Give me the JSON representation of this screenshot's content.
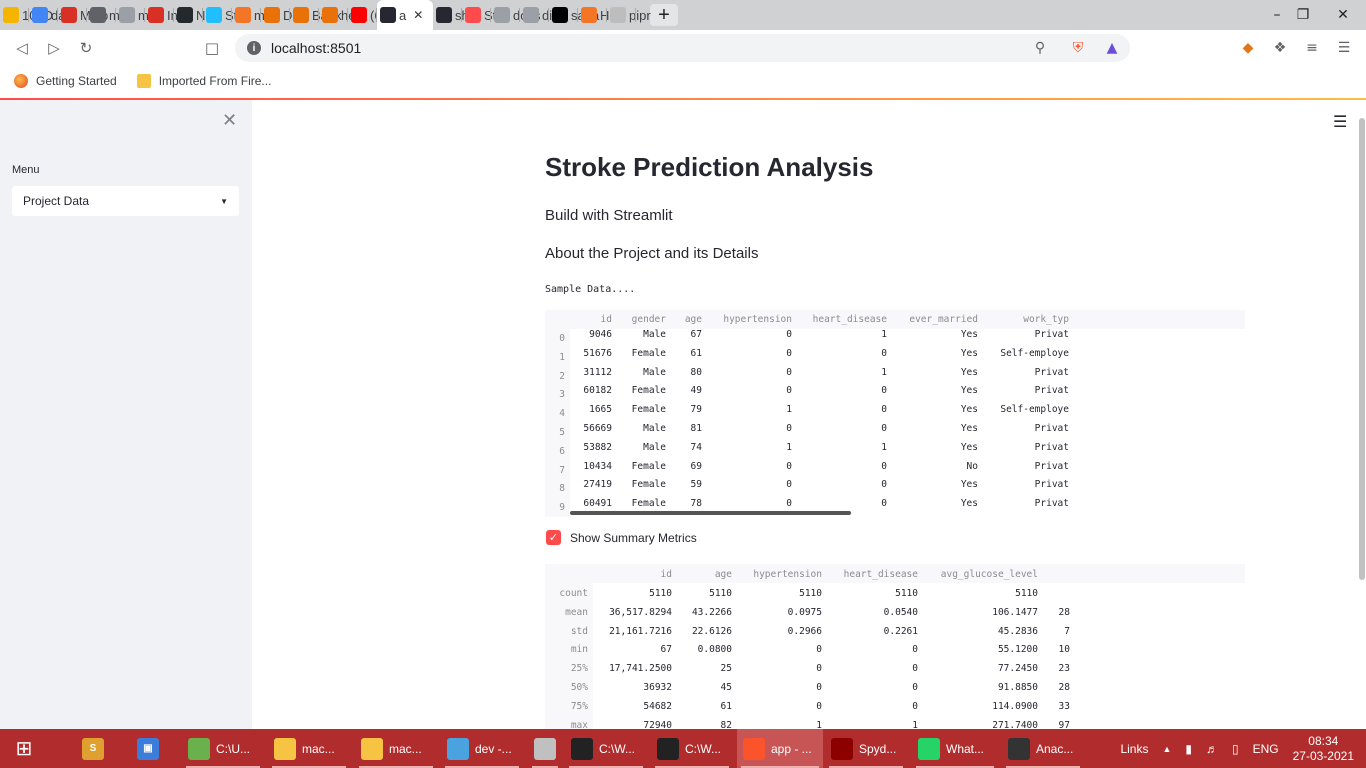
{
  "browser": {
    "tabs": [
      {
        "title": "10: D",
        "icon": "app-icon",
        "color": "#f4b400"
      },
      {
        "title": "data",
        "icon": "google-icon",
        "color": "#4285f4"
      },
      {
        "title": "My p",
        "icon": "gmail-icon",
        "color": "#d93025"
      },
      {
        "title": "mail",
        "icon": "globe-icon",
        "color": "#5f6368"
      },
      {
        "title": "mail",
        "icon": "gmail-icon",
        "color": "#9aa0a6"
      },
      {
        "title": "Inbo",
        "icon": "gmail-icon",
        "color": "#d93025"
      },
      {
        "title": "New",
        "icon": "github-icon",
        "color": "#24292e"
      },
      {
        "title": "Stro",
        "icon": "kaggle-icon",
        "color": "#20beff"
      },
      {
        "title": "mac",
        "icon": "orange-ring-icon",
        "color": "#f37626"
      },
      {
        "title": "Desi",
        "icon": "doc-icon",
        "color": "#e8710a"
      },
      {
        "title": "Bank",
        "icon": "doc-icon",
        "color": "#e8710a"
      },
      {
        "title": "heal",
        "icon": "doc-icon",
        "color": "#e8710a"
      },
      {
        "title": "(6) H",
        "icon": "youtube-icon",
        "color": "#ff0000"
      },
      {
        "title": "a",
        "icon": "streamlit-icon",
        "color": "#262730",
        "active": true
      },
      {
        "title": "shar",
        "icon": "streamlit-icon",
        "color": "#262730"
      },
      {
        "title": "Stre",
        "icon": "crown-icon",
        "color": "#ff4b4b"
      },
      {
        "title": "docs",
        "icon": "crown-icon",
        "color": "#9aa0a6"
      },
      {
        "title": "disc",
        "icon": "crown-icon",
        "color": "#9aa0a6"
      },
      {
        "title": "saira",
        "icon": "medium-icon",
        "color": "#000000"
      },
      {
        "title": "Hon",
        "icon": "orange-ring-icon",
        "color": "#f37626"
      },
      {
        "title": "pipr",
        "icon": "box-icon",
        "color": "#bdbdbd"
      }
    ],
    "url": "localhost:8501",
    "bookmarks": [
      {
        "label": "Getting Started",
        "icon": "firefox-icon"
      },
      {
        "label": "Imported From Fire...",
        "icon": "folder-icon"
      }
    ]
  },
  "sidebar": {
    "menu_label": "Menu",
    "selected": "Project Data"
  },
  "main": {
    "title": "Stroke Prediction Analysis",
    "subtitle1": "Build with Streamlit",
    "subtitle2": "About the Project and its Details",
    "sample_label": "Sample Data....",
    "checkbox_label": "Show Summary Metrics",
    "checkbox_checked": true
  },
  "sample_table": {
    "columns": [
      "id",
      "gender",
      "age",
      "hypertension",
      "heart_disease",
      "ever_married",
      "work_typ"
    ],
    "index": [
      "0",
      "1",
      "2",
      "3",
      "4",
      "5",
      "6",
      "7",
      "8",
      "9"
    ],
    "rows": [
      [
        "9046",
        "Male",
        "67",
        "0",
        "1",
        "Yes",
        "Privat"
      ],
      [
        "51676",
        "Female",
        "61",
        "0",
        "0",
        "Yes",
        "Self-employe"
      ],
      [
        "31112",
        "Male",
        "80",
        "0",
        "1",
        "Yes",
        "Privat"
      ],
      [
        "60182",
        "Female",
        "49",
        "0",
        "0",
        "Yes",
        "Privat"
      ],
      [
        "1665",
        "Female",
        "79",
        "1",
        "0",
        "Yes",
        "Self-employe"
      ],
      [
        "56669",
        "Male",
        "81",
        "0",
        "0",
        "Yes",
        "Privat"
      ],
      [
        "53882",
        "Male",
        "74",
        "1",
        "1",
        "Yes",
        "Privat"
      ],
      [
        "10434",
        "Female",
        "69",
        "0",
        "0",
        "No",
        "Privat"
      ],
      [
        "27419",
        "Female",
        "59",
        "0",
        "0",
        "Yes",
        "Privat"
      ],
      [
        "60491",
        "Female",
        "78",
        "0",
        "0",
        "Yes",
        "Privat"
      ]
    ]
  },
  "summary_table": {
    "columns": [
      "id",
      "age",
      "hypertension",
      "heart_disease",
      "avg_glucose_level",
      ""
    ],
    "index": [
      "count",
      "mean",
      "std",
      "min",
      "25%",
      "50%",
      "75%",
      "max"
    ],
    "rows": [
      [
        "5110",
        "5110",
        "5110",
        "5110",
        "5110",
        ""
      ],
      [
        "36,517.8294",
        "43.2266",
        "0.0975",
        "0.0540",
        "106.1477",
        "28"
      ],
      [
        "21,161.7216",
        "22.6126",
        "0.2966",
        "0.2261",
        "45.2836",
        "7"
      ],
      [
        "67",
        "0.0800",
        "0",
        "0",
        "55.1200",
        "10"
      ],
      [
        "17,741.2500",
        "25",
        "0",
        "0",
        "77.2450",
        "23"
      ],
      [
        "36932",
        "45",
        "0",
        "0",
        "91.8850",
        "28"
      ],
      [
        "54682",
        "61",
        "0",
        "0",
        "114.0900",
        "33"
      ],
      [
        "72940",
        "82",
        "1",
        "1",
        "271.7400",
        "97"
      ]
    ]
  },
  "taskbar": {
    "items": [
      {
        "label": "C:\\U...",
        "icon": "app-icon",
        "color": "#6ab04c"
      },
      {
        "label": "mac...",
        "icon": "folder-icon",
        "color": "#f6c343"
      },
      {
        "label": "mac...",
        "icon": "folder-icon",
        "color": "#f6c343"
      },
      {
        "label": "dev -...",
        "icon": "image-icon",
        "color": "#4aa3df"
      },
      {
        "label": "",
        "icon": "tool-icon",
        "color": "#c0c0c0"
      },
      {
        "label": "C:\\W...",
        "icon": "terminal-icon",
        "color": "#222222"
      },
      {
        "label": "C:\\W...",
        "icon": "terminal-icon",
        "color": "#222222"
      },
      {
        "label": "app - ...",
        "icon": "brave-icon",
        "color": "#fb542b",
        "active": true
      },
      {
        "label": "Spyd...",
        "icon": "spyder-icon",
        "color": "#8c0000"
      },
      {
        "label": "What...",
        "icon": "whatsapp-icon",
        "color": "#25d366"
      },
      {
        "label": "Anac...",
        "icon": "terminal-icon",
        "color": "#333333"
      }
    ],
    "links_label": "Links",
    "language": "ENG",
    "time": "08:34",
    "date": "27-03-2021"
  }
}
